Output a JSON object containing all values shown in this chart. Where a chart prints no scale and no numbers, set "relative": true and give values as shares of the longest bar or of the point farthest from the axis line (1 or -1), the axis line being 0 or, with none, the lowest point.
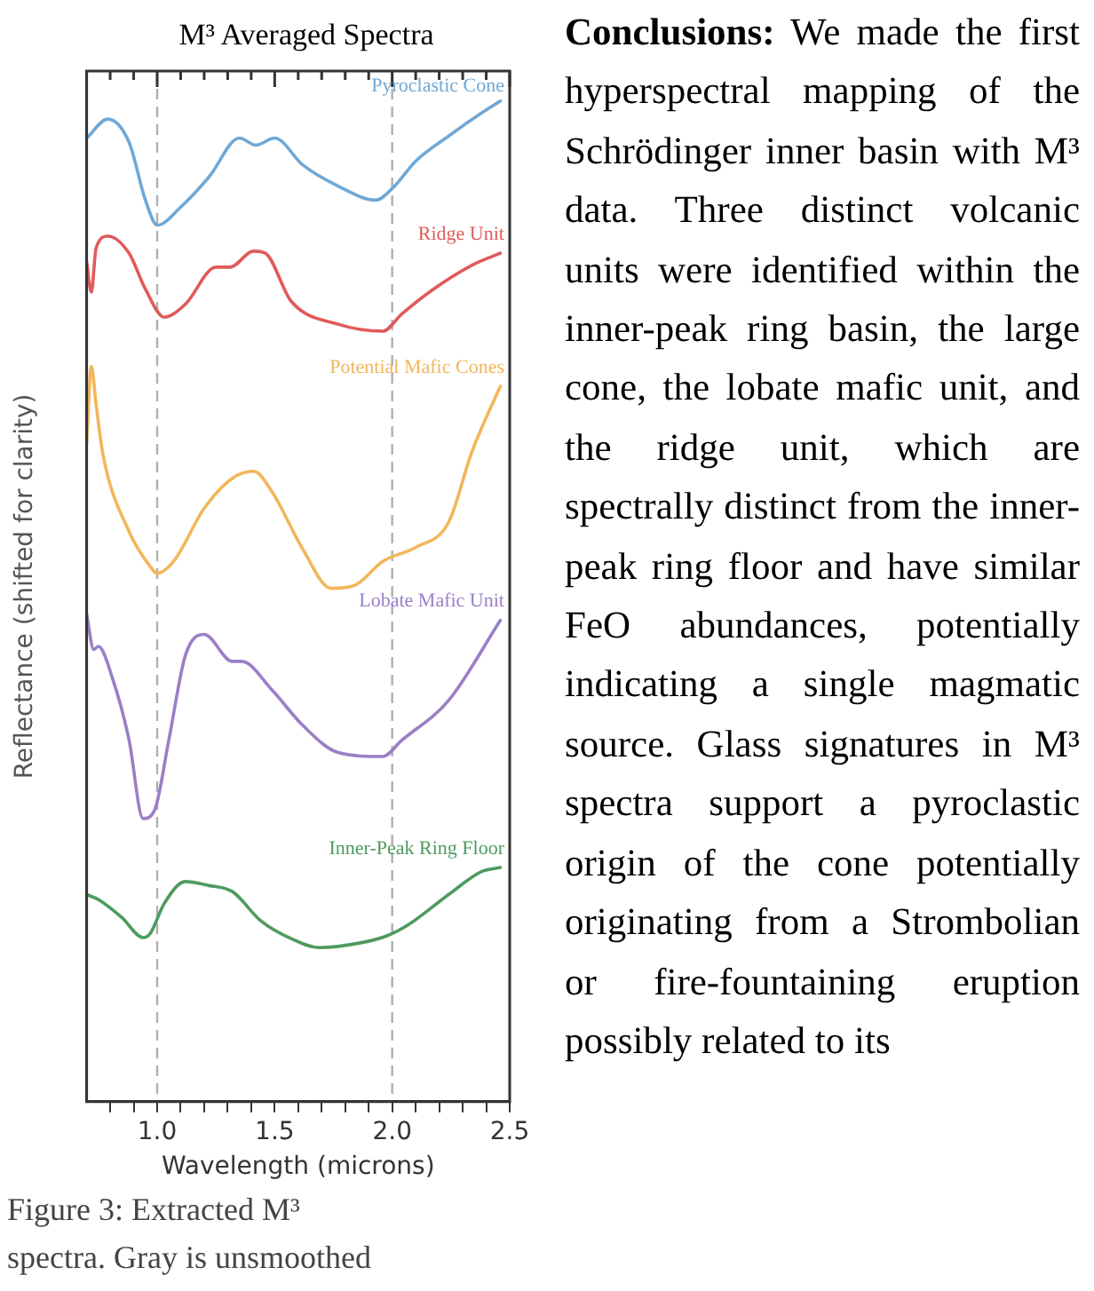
{
  "chart_data": {
    "type": "line",
    "title": "M³ Averaged Spectra",
    "xlabel": "Wavelength (microns)",
    "ylabel": "Reflectance (shifted for clarity)",
    "relative": true,
    "legend": false,
    "marker": "none",
    "line_style": "solid",
    "xlim": [
      0.7,
      2.5
    ],
    "xticks": [
      {
        "value": 0.8,
        "label": null
      },
      {
        "value": 0.9,
        "label": null
      },
      {
        "value": 1.0,
        "label": "1.0"
      },
      {
        "value": 1.1,
        "label": null
      },
      {
        "value": 1.2,
        "label": null
      },
      {
        "value": 1.3,
        "label": null
      },
      {
        "value": 1.4,
        "label": null
      },
      {
        "value": 1.5,
        "label": "1.5"
      },
      {
        "value": 1.6,
        "label": null
      },
      {
        "value": 1.7,
        "label": null
      },
      {
        "value": 1.8,
        "label": null
      },
      {
        "value": 1.9,
        "label": null
      },
      {
        "value": 2.0,
        "label": "2.0"
      },
      {
        "value": 2.1,
        "label": null
      },
      {
        "value": 2.2,
        "label": null
      },
      {
        "value": 2.3,
        "label": null
      },
      {
        "value": 2.4,
        "label": null
      },
      {
        "value": 2.5,
        "label": "2.5"
      }
    ],
    "ref_lines": [
      {
        "axis": "x",
        "value": 1.0,
        "color": "#b0b0b0",
        "line_style": "dashed"
      },
      {
        "axis": "x",
        "value": 2.0,
        "color": "#b0b0b0",
        "line_style": "dashed"
      }
    ],
    "series": [
      {
        "name": "Pyroclastic Cone",
        "color": "#6fa8d6",
        "x": [
          0.7,
          0.79,
          0.88,
          0.95,
          1.0,
          1.1,
          1.22,
          1.35,
          1.42,
          1.5,
          1.62,
          1.77,
          1.93,
          2.01,
          2.1,
          2.24,
          2.38,
          2.46
        ],
        "values": [
          0.963,
          0.982,
          0.959,
          0.901,
          0.876,
          0.894,
          0.924,
          0.963,
          0.956,
          0.963,
          0.936,
          0.915,
          0.901,
          0.915,
          0.94,
          0.965,
          0.988,
          1.0
        ]
      },
      {
        "name": "Ridge Unit",
        "color": "#e05a5a",
        "x": [
          0.7,
          0.72,
          0.74,
          0.79,
          0.88,
          0.95,
          1.03,
          1.12,
          1.25,
          1.31,
          1.41,
          1.46,
          1.57,
          1.77,
          1.96,
          2.04,
          2.17,
          2.34,
          2.46
        ],
        "values": [
          0.839,
          0.809,
          0.853,
          0.865,
          0.848,
          0.812,
          0.784,
          0.797,
          0.834,
          0.834,
          0.85,
          0.848,
          0.8,
          0.777,
          0.77,
          0.787,
          0.811,
          0.836,
          0.848
        ]
      },
      {
        "name": "Potential Mafic Cones",
        "color": "#f2b65a",
        "x": [
          0.7,
          0.72,
          0.74,
          0.77,
          0.88,
          0.97,
          1.0,
          1.07,
          1.2,
          1.32,
          1.41,
          1.49,
          1.62,
          1.74,
          1.84,
          1.96,
          2.1,
          2.24,
          2.34,
          2.46
        ],
        "values": [
          0.658,
          0.735,
          0.697,
          0.646,
          0.57,
          0.535,
          0.528,
          0.54,
          0.593,
          0.623,
          0.63,
          0.609,
          0.552,
          0.513,
          0.516,
          0.54,
          0.554,
          0.579,
          0.65,
          0.715
        ]
      },
      {
        "name": "Lobate Mafic Unit",
        "color": "#9a7fc6",
        "x": [
          0.7,
          0.73,
          0.75,
          0.81,
          0.88,
          0.94,
          0.99,
          1.05,
          1.12,
          1.2,
          1.32,
          1.36,
          1.49,
          1.62,
          1.77,
          1.96,
          2.04,
          2.24,
          2.46
        ],
        "values": [
          0.487,
          0.452,
          0.455,
          0.423,
          0.362,
          0.283,
          0.292,
          0.362,
          0.446,
          0.467,
          0.44,
          0.44,
          0.411,
          0.376,
          0.349,
          0.345,
          0.361,
          0.401,
          0.481
        ]
      },
      {
        "name": "Inner-Peak Ring Floor",
        "color": "#4e9a5e",
        "x": [
          0.7,
          0.75,
          0.85,
          0.94,
          0.97,
          1.03,
          1.12,
          1.22,
          1.32,
          1.44,
          1.57,
          1.69,
          1.87,
          1.98,
          2.07,
          2.24,
          2.38,
          2.46
        ],
        "values": [
          0.207,
          0.202,
          0.184,
          0.164,
          0.168,
          0.198,
          0.22,
          0.216,
          0.21,
          0.181,
          0.163,
          0.154,
          0.159,
          0.166,
          0.177,
          0.207,
          0.23,
          0.234
        ]
      }
    ],
    "annotations": [
      "Figure 3: Extracted M³ spectra. Gray is unsmoothed",
      "Conclusions:",
      "We made the first hyperspectral mapping of the Schrödinger inner basin with M³ data. Three distinct volcanic units were identified within the inner-peak ring basin, the large cone, the lobate mafic unit, and the ridge unit, which are spectrally distinct from the inner-peak ring floor and have similar FeO abundances, potentially indicating a single magmatic source. Glass signatures in M³ spectra support a pyroclastic origin of the cone potentially originating from a Strombolian or fire-fountaining eruption possibly related to its"
    ]
  }
}
